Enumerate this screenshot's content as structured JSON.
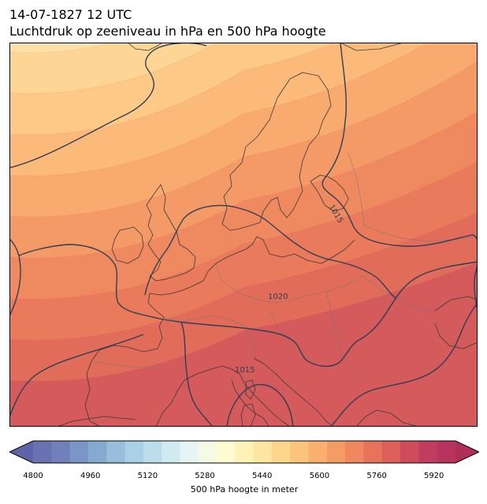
{
  "header": {
    "datetime": "14-07-1827 12 UTC",
    "subtitle": "Luchtdruk op zeeniveau in hPa en 500 hPa hoogte"
  },
  "map": {
    "isobar_labels": [
      "1015",
      "1020",
      "1015"
    ],
    "fill_bands": [
      "#fde1a6",
      "#fdd595",
      "#fdc986",
      "#fbba79",
      "#f8aa6f",
      "#f49a66",
      "#ef8a60",
      "#e97a5b",
      "#e06c59",
      "#d45a5b"
    ],
    "isobar_color": "#2f3e55",
    "coast_color": "#3a3a3a"
  },
  "colorbar": {
    "label": "500 hPa hoogte in meter",
    "ticks": [
      "4800",
      "4960",
      "5120",
      "5280",
      "5440",
      "5600",
      "5760",
      "5920"
    ],
    "range": [
      4800,
      5980
    ],
    "colors": [
      "#6b72b3",
      "#6f80bb",
      "#7b95c6",
      "#86a9d2",
      "#98bedb",
      "#a9d0e5",
      "#bcdeec",
      "#d1eaf2",
      "#e6f5f4",
      "#f4fae6",
      "#fffbd0",
      "#fff2b7",
      "#fee6a0",
      "#fdd68c",
      "#fcc47b",
      "#f9b06e",
      "#f59b64",
      "#f0875e",
      "#e7735b",
      "#dc5f5b",
      "#cf4c5d",
      "#c03d5f",
      "#b8345e"
    ]
  }
}
